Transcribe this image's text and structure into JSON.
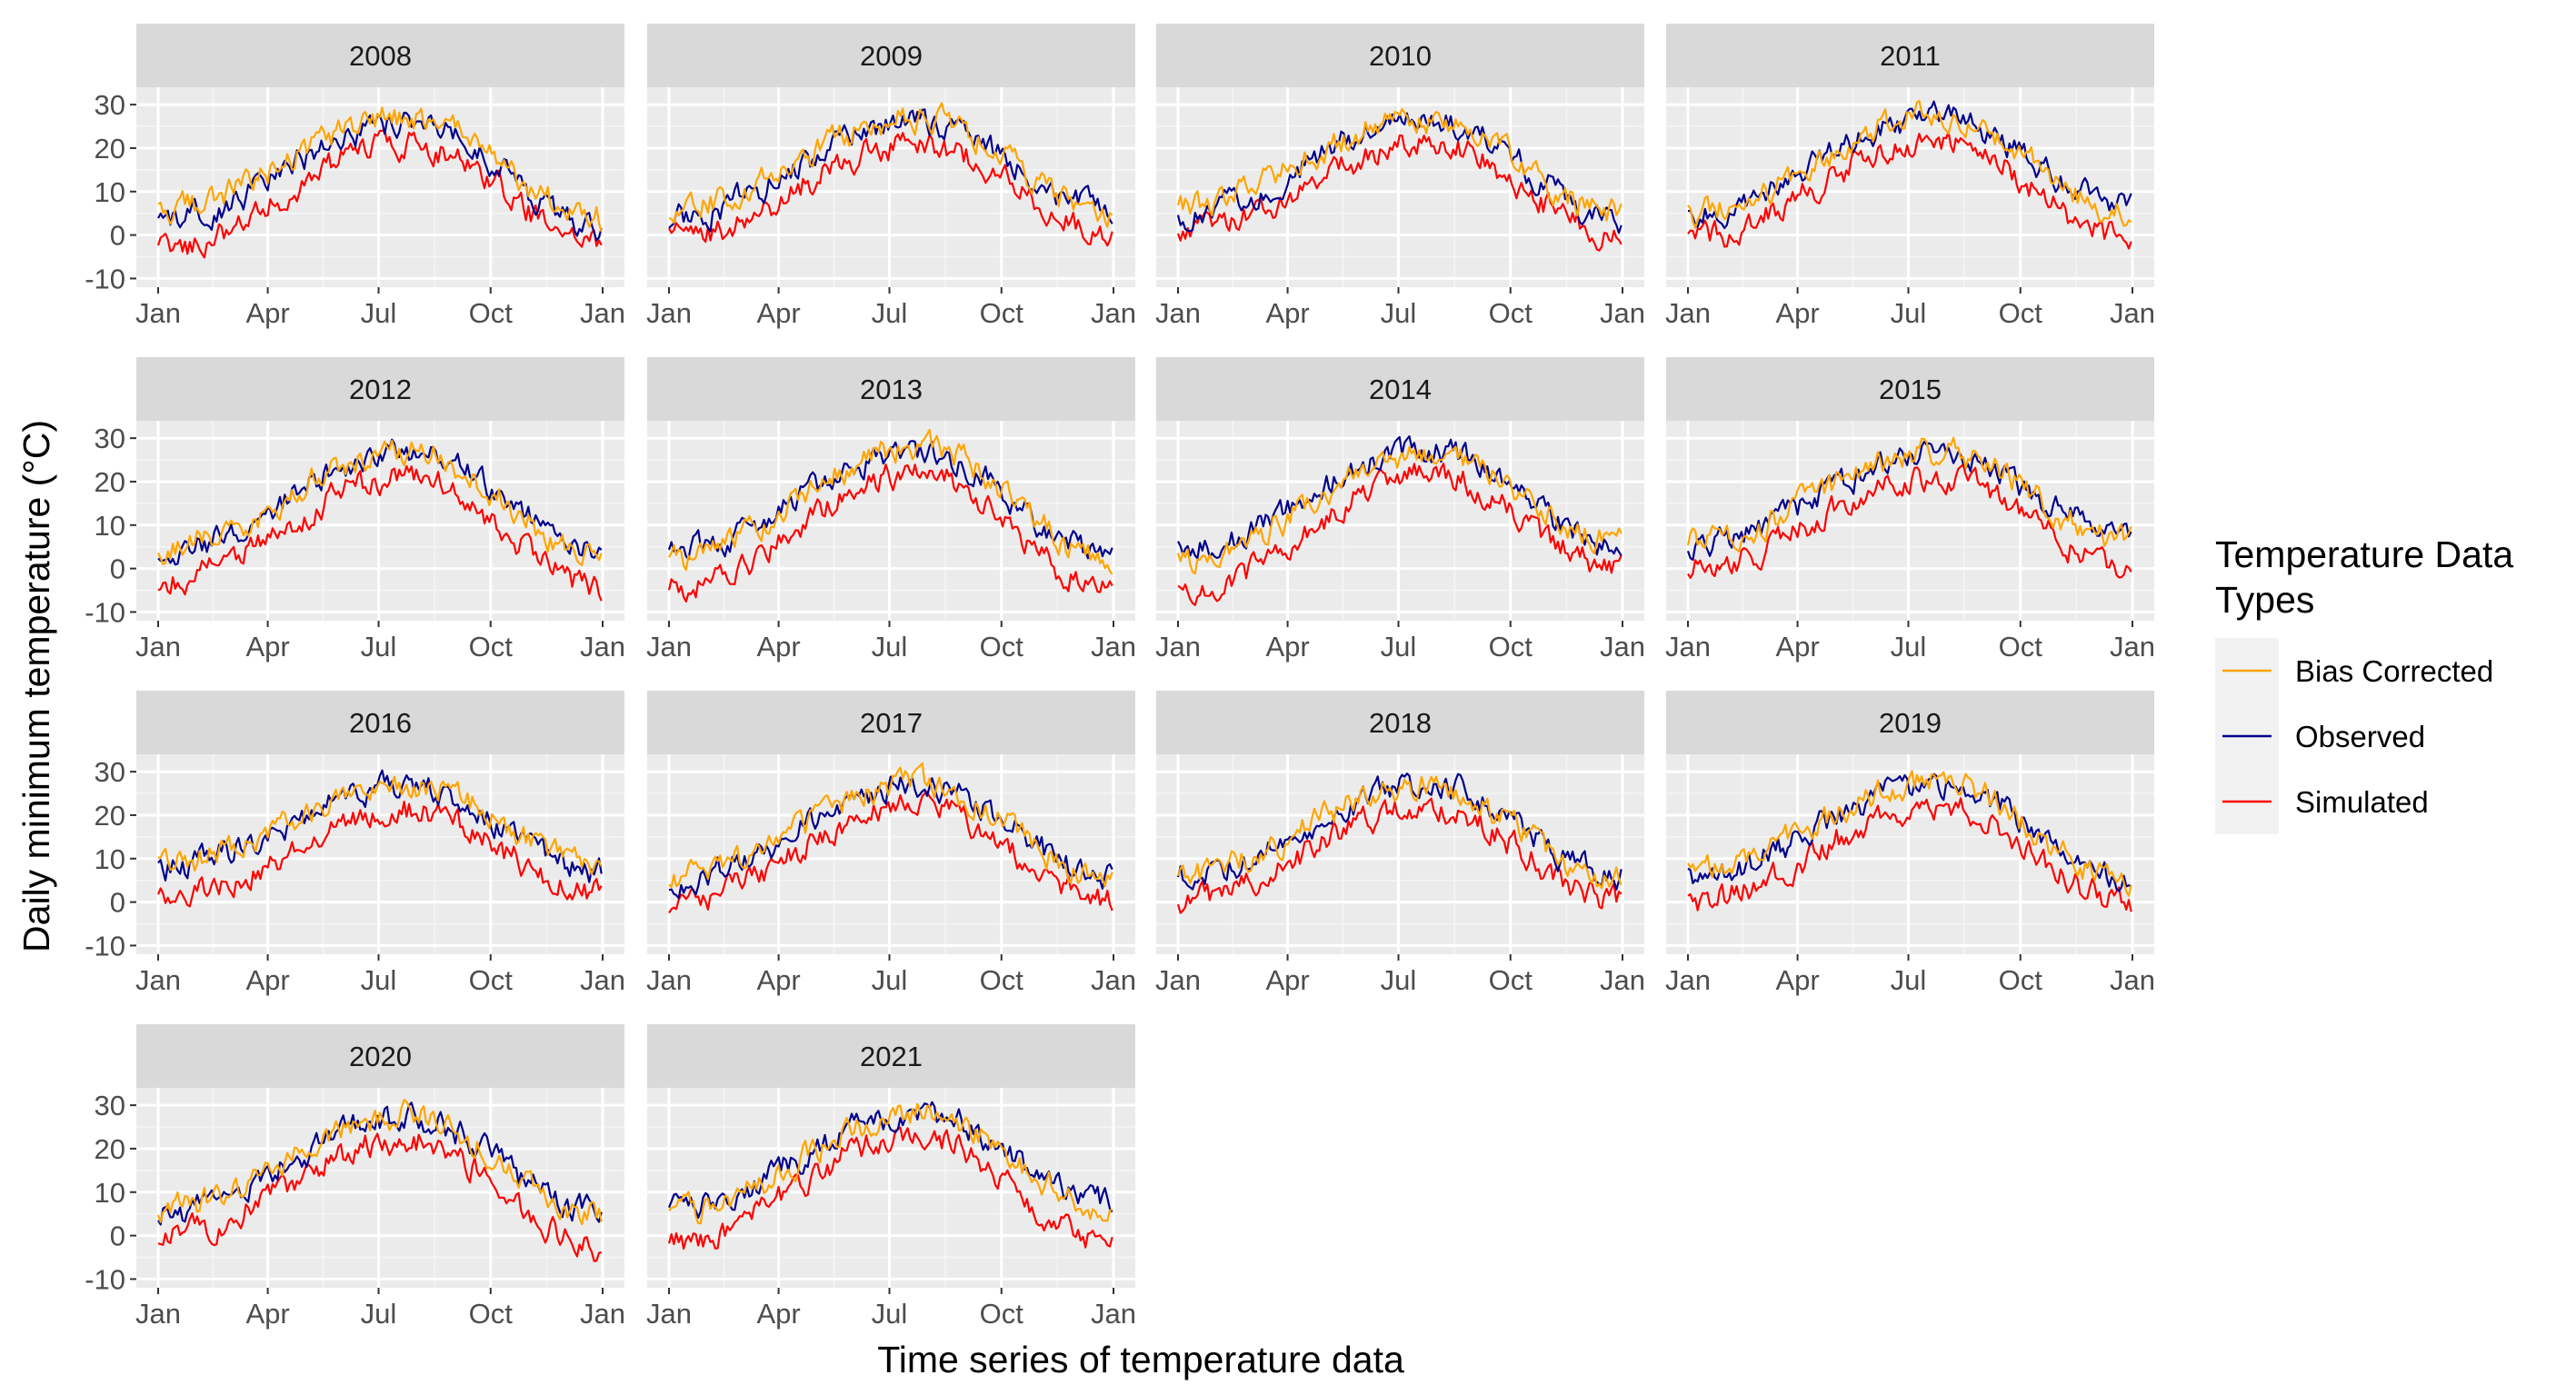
{
  "chart_data": {
    "type": "line",
    "facet_by": "year",
    "xlabel": "Time series of temperature data",
    "ylabel": "Daily minimum temperature (°C)",
    "ylim": [
      -12,
      34
    ],
    "y_ticks": [
      -10,
      0,
      10,
      20,
      30
    ],
    "x_tick_labels": [
      "Jan",
      "Apr",
      "Jul",
      "Oct",
      "Jan"
    ],
    "legend": {
      "title": "Temperature Data Types",
      "title_lines": [
        "Temperature Data",
        "Types"
      ],
      "placement": "right"
    },
    "series": [
      {
        "name": "Bias Corrected",
        "color": "#FFA500"
      },
      {
        "name": "Observed",
        "color": "#00008B"
      },
      {
        "name": "Simulated",
        "color": "#FF0000"
      }
    ],
    "facets": [
      {
        "year": "2008",
        "start": {
          "Bias Corrected": 6,
          "Observed": 3,
          "Simulated": -3
        },
        "peak": {
          "Bias Corrected": 27,
          "Observed": 26,
          "Simulated": 21
        },
        "end": {
          "Bias Corrected": 4,
          "Observed": 2,
          "Simulated": -2
        }
      },
      {
        "year": "2009",
        "start": {
          "Bias Corrected": 6,
          "Observed": 4,
          "Simulated": -1
        },
        "peak": {
          "Bias Corrected": 27,
          "Observed": 26,
          "Simulated": 21
        },
        "end": {
          "Bias Corrected": 5,
          "Observed": 6,
          "Simulated": 0
        }
      },
      {
        "year": "2010",
        "start": {
          "Bias Corrected": 7,
          "Observed": 5,
          "Simulated": 1
        },
        "peak": {
          "Bias Corrected": 27,
          "Observed": 27,
          "Simulated": 21
        },
        "end": {
          "Bias Corrected": 5,
          "Observed": 4,
          "Simulated": 0
        }
      },
      {
        "year": "2011",
        "start": {
          "Bias Corrected": 5,
          "Observed": 4,
          "Simulated": -1
        },
        "peak": {
          "Bias Corrected": 28,
          "Observed": 27,
          "Simulated": 22
        },
        "end": {
          "Bias Corrected": 5,
          "Observed": 6,
          "Simulated": -1
        }
      },
      {
        "year": "2012",
        "start": {
          "Bias Corrected": 5,
          "Observed": 4,
          "Simulated": -3
        },
        "peak": {
          "Bias Corrected": 27,
          "Observed": 27,
          "Simulated": 21
        },
        "end": {
          "Bias Corrected": 3,
          "Observed": 5,
          "Simulated": -4
        }
      },
      {
        "year": "2013",
        "start": {
          "Bias Corrected": 2,
          "Observed": 4,
          "Simulated": -5
        },
        "peak": {
          "Bias Corrected": 28,
          "Observed": 27,
          "Simulated": 22
        },
        "end": {
          "Bias Corrected": 2,
          "Observed": 3,
          "Simulated": -5
        }
      },
      {
        "year": "2014",
        "start": {
          "Bias Corrected": 1,
          "Observed": 4,
          "Simulated": -6
        },
        "peak": {
          "Bias Corrected": 27,
          "Observed": 27,
          "Simulated": 22
        },
        "end": {
          "Bias Corrected": 6,
          "Observed": 5,
          "Simulated": 0
        }
      },
      {
        "year": "2015",
        "start": {
          "Bias Corrected": 6,
          "Observed": 5,
          "Simulated": 0
        },
        "peak": {
          "Bias Corrected": 27,
          "Observed": 26,
          "Simulated": 21
        },
        "end": {
          "Bias Corrected": 6,
          "Observed": 8,
          "Simulated": 0
        }
      },
      {
        "year": "2016",
        "start": {
          "Bias Corrected": 9,
          "Observed": 8,
          "Simulated": 1
        },
        "peak": {
          "Bias Corrected": 27,
          "Observed": 27,
          "Simulated": 21
        },
        "end": {
          "Bias Corrected": 8,
          "Observed": 7,
          "Simulated": 2
        }
      },
      {
        "year": "2017",
        "start": {
          "Bias Corrected": 6,
          "Observed": 5,
          "Simulated": 0
        },
        "peak": {
          "Bias Corrected": 27,
          "Observed": 27,
          "Simulated": 22
        },
        "end": {
          "Bias Corrected": 5,
          "Observed": 6,
          "Simulated": 0
        }
      },
      {
        "year": "2018",
        "start": {
          "Bias Corrected": 6,
          "Observed": 6,
          "Simulated": 0
        },
        "peak": {
          "Bias Corrected": 27,
          "Observed": 27,
          "Simulated": 22
        },
        "end": {
          "Bias Corrected": 5,
          "Observed": 6,
          "Simulated": 0
        }
      },
      {
        "year": "2019",
        "start": {
          "Bias Corrected": 7,
          "Observed": 6,
          "Simulated": 0
        },
        "peak": {
          "Bias Corrected": 28,
          "Observed": 27,
          "Simulated": 22
        },
        "end": {
          "Bias Corrected": 5,
          "Observed": 5,
          "Simulated": 0
        }
      },
      {
        "year": "2020",
        "start": {
          "Bias Corrected": 6,
          "Observed": 5,
          "Simulated": 0
        },
        "peak": {
          "Bias Corrected": 28,
          "Observed": 27,
          "Simulated": 22
        },
        "end": {
          "Bias Corrected": 4,
          "Observed": 5,
          "Simulated": -3
        }
      },
      {
        "year": "2021",
        "start": {
          "Bias Corrected": 5,
          "Observed": 6,
          "Simulated": -2
        },
        "peak": {
          "Bias Corrected": 28,
          "Observed": 28,
          "Simulated": 23
        },
        "end": {
          "Bias Corrected": 6,
          "Observed": 8,
          "Simulated": -2
        }
      }
    ]
  }
}
